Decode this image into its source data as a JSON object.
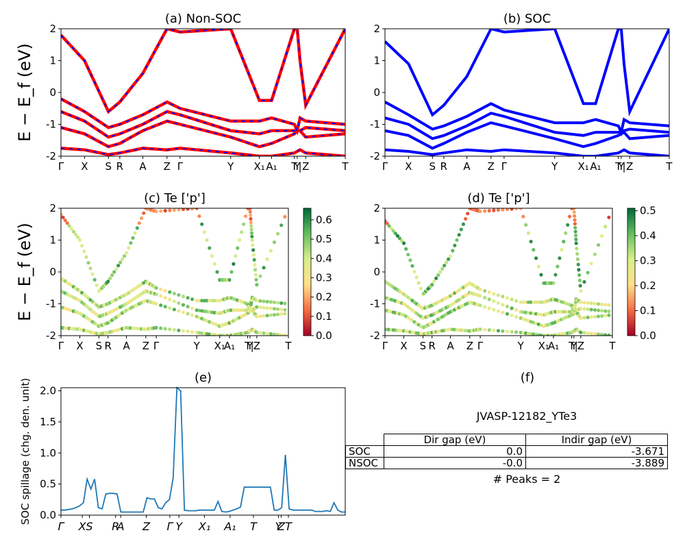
{
  "colors": {
    "band_red": "#ff0000",
    "band_blue": "#0000ff",
    "spillage_line": "#1f77b4",
    "cmap": [
      "#a50026",
      "#f46d43",
      "#fee08b",
      "#d9ef8b",
      "#66bd63",
      "#006837"
    ]
  },
  "chart_data": [
    {
      "id": "a",
      "type": "line",
      "title": "(a) Non-SOC",
      "ylabel": "E − E_f (eV)",
      "ylim": [
        -2,
        2
      ],
      "yticks": [
        -2,
        -1,
        0,
        1,
        2
      ],
      "kpath": [
        "Γ",
        "X",
        "S",
        "R",
        "A",
        "Z",
        "Γ",
        "Y",
        "X₁",
        "A₁",
        "T",
        "Y",
        "|",
        "Z",
        "T"
      ],
      "series": [
        {
          "values": [
            -1.75,
            -1.8,
            -1.95,
            -1.9,
            -1.75,
            -1.8,
            -1.75,
            -1.9,
            -2,
            -2,
            -1.9,
            -1.85,
            -1.8,
            -1.9,
            -2
          ]
        },
        {
          "values": [
            -1.1,
            -1.3,
            -1.7,
            -1.6,
            -1.2,
            -0.9,
            -1.0,
            -1.4,
            -1.7,
            -1.6,
            -1.3,
            -1.2,
            -1.2,
            -1.4,
            -1.3
          ]
        },
        {
          "values": [
            -0.6,
            -0.9,
            -1.4,
            -1.3,
            -1.0,
            -0.6,
            -0.7,
            -1.2,
            -1.3,
            -1.2,
            -1.2,
            -1.2,
            -1.2,
            -1.1,
            -1.2
          ]
        },
        {
          "values": [
            -0.2,
            -0.6,
            -1.1,
            -1.0,
            -0.7,
            -0.3,
            -0.5,
            -0.9,
            -0.9,
            -0.8,
            -1.0,
            -1.2,
            -0.8,
            -0.9,
            -1.0
          ]
        },
        {
          "values": [
            1.8,
            1.0,
            -0.6,
            -0.3,
            0.6,
            2.0,
            1.9,
            2.0,
            -0.25,
            -0.25,
            2.0,
            2.0,
            1.0,
            -0.4,
            2.0
          ]
        }
      ]
    },
    {
      "id": "b",
      "type": "line",
      "title": "(b) SOC",
      "ylim": [
        -2,
        2
      ],
      "yticks": [
        -2,
        -1,
        0,
        1,
        2
      ],
      "kpath": [
        "Γ",
        "X",
        "S",
        "R",
        "A",
        "Z",
        "Γ",
        "Y",
        "X₁",
        "A₁",
        "T",
        "Y",
        "|",
        "Z",
        "T"
      ],
      "series": [
        {
          "values": [
            -1.8,
            -1.85,
            -1.95,
            -1.9,
            -1.8,
            -1.85,
            -1.8,
            -1.9,
            -2,
            -2,
            -1.9,
            -1.85,
            -1.8,
            -1.9,
            -2
          ]
        },
        {
          "values": [
            -1.2,
            -1.35,
            -1.75,
            -1.6,
            -1.25,
            -0.95,
            -1.05,
            -1.45,
            -1.7,
            -1.6,
            -1.35,
            -1.3,
            -1.25,
            -1.45,
            -1.35
          ]
        },
        {
          "values": [
            -0.8,
            -1.0,
            -1.45,
            -1.35,
            -1.05,
            -0.65,
            -0.75,
            -1.25,
            -1.35,
            -1.25,
            -1.25,
            -1.25,
            -1.2,
            -1.15,
            -1.25
          ]
        },
        {
          "values": [
            -0.3,
            -0.7,
            -1.15,
            -1.05,
            -0.75,
            -0.35,
            -0.55,
            -0.95,
            -0.95,
            -0.85,
            -1.05,
            -1.25,
            -0.85,
            -0.95,
            -1.05
          ]
        },
        {
          "values": [
            1.6,
            0.9,
            -0.7,
            -0.4,
            0.5,
            2.0,
            1.9,
            2.0,
            -0.35,
            -0.35,
            2.0,
            2.0,
            0.9,
            -0.6,
            2.0
          ]
        }
      ]
    },
    {
      "id": "c",
      "type": "scatter",
      "title": "(c)  Te ['p']",
      "ylabel": "E − E_f (eV)",
      "ylim": [
        -2,
        2
      ],
      "yticks": [
        -2,
        -1,
        0,
        1,
        2
      ],
      "colorbar_ticks": [
        "0.0",
        "0.1",
        "0.2",
        "0.3",
        "0.4",
        "0.5",
        "0.6"
      ],
      "colorbar_max": 0.66,
      "kpath": [
        "Γ",
        "X",
        "S",
        "R",
        "A",
        "Z",
        "Γ",
        "Y",
        "X₁",
        "A₁",
        "T",
        "Y",
        "|",
        "Z",
        "T"
      ]
    },
    {
      "id": "d",
      "type": "scatter",
      "title": "(d) Te ['p']",
      "ylim": [
        -2,
        2
      ],
      "yticks": [
        -2,
        -1,
        0,
        1,
        2
      ],
      "colorbar_ticks": [
        "0.0",
        "0.1",
        "0.2",
        "0.3",
        "0.4",
        "0.5"
      ],
      "colorbar_max": 0.51,
      "kpath": [
        "Γ",
        "X",
        "S",
        "R",
        "A",
        "Z",
        "Γ",
        "Y",
        "X₁",
        "A₁",
        "T",
        "Y",
        "|",
        "Z",
        "T"
      ]
    },
    {
      "id": "e",
      "type": "line",
      "title": "(e)",
      "ylabel": "SOC spillage (chg. den. unit)",
      "ylim": [
        0,
        2.05
      ],
      "yticks": [
        "0.0",
        "0.5",
        "1.0",
        "1.5",
        "2.0"
      ],
      "xticks": [
        "Γ",
        "X",
        "S",
        "R",
        "A",
        "Z",
        "Γ",
        "Y",
        "X₁",
        "A₁",
        "T",
        "Y",
        "Z",
        "T"
      ],
      "y": [
        0.08,
        0.08,
        0.09,
        0.1,
        0.12,
        0.15,
        0.2,
        0.58,
        0.42,
        0.58,
        0.12,
        0.1,
        0.34,
        0.35,
        0.35,
        0.34,
        0.05,
        0.05,
        0.05,
        0.05,
        0.05,
        0.05,
        0.05,
        0.28,
        0.26,
        0.26,
        0.12,
        0.1,
        0.2,
        0.25,
        0.6,
        2.05,
        2.0,
        0.08,
        0.07,
        0.07,
        0.07,
        0.08,
        0.08,
        0.08,
        0.08,
        0.08,
        0.22,
        0.06,
        0.05,
        0.06,
        0.08,
        0.1,
        0.13,
        0.45,
        0.45,
        0.45,
        0.45,
        0.45,
        0.45,
        0.45,
        0.45,
        0.08,
        0.08,
        0.12,
        0.97,
        0.1,
        0.08,
        0.08,
        0.08,
        0.08,
        0.08,
        0.08,
        0.06,
        0.06,
        0.06,
        0.07,
        0.06,
        0.2,
        0.08,
        0.05,
        0.05
      ]
    }
  ],
  "panel_f": {
    "title": "(f)",
    "material": "JVASP-12182_YTe3",
    "headers": [
      "",
      "Dir gap (eV)",
      "Indir gap (eV)"
    ],
    "rows": [
      {
        "label": "SOC",
        "dir": "0.0",
        "indir": "-3.671"
      },
      {
        "label": "NSOC",
        "dir": "-0.0",
        "indir": "-3.889"
      }
    ],
    "peaks": "# Peaks = 2"
  }
}
